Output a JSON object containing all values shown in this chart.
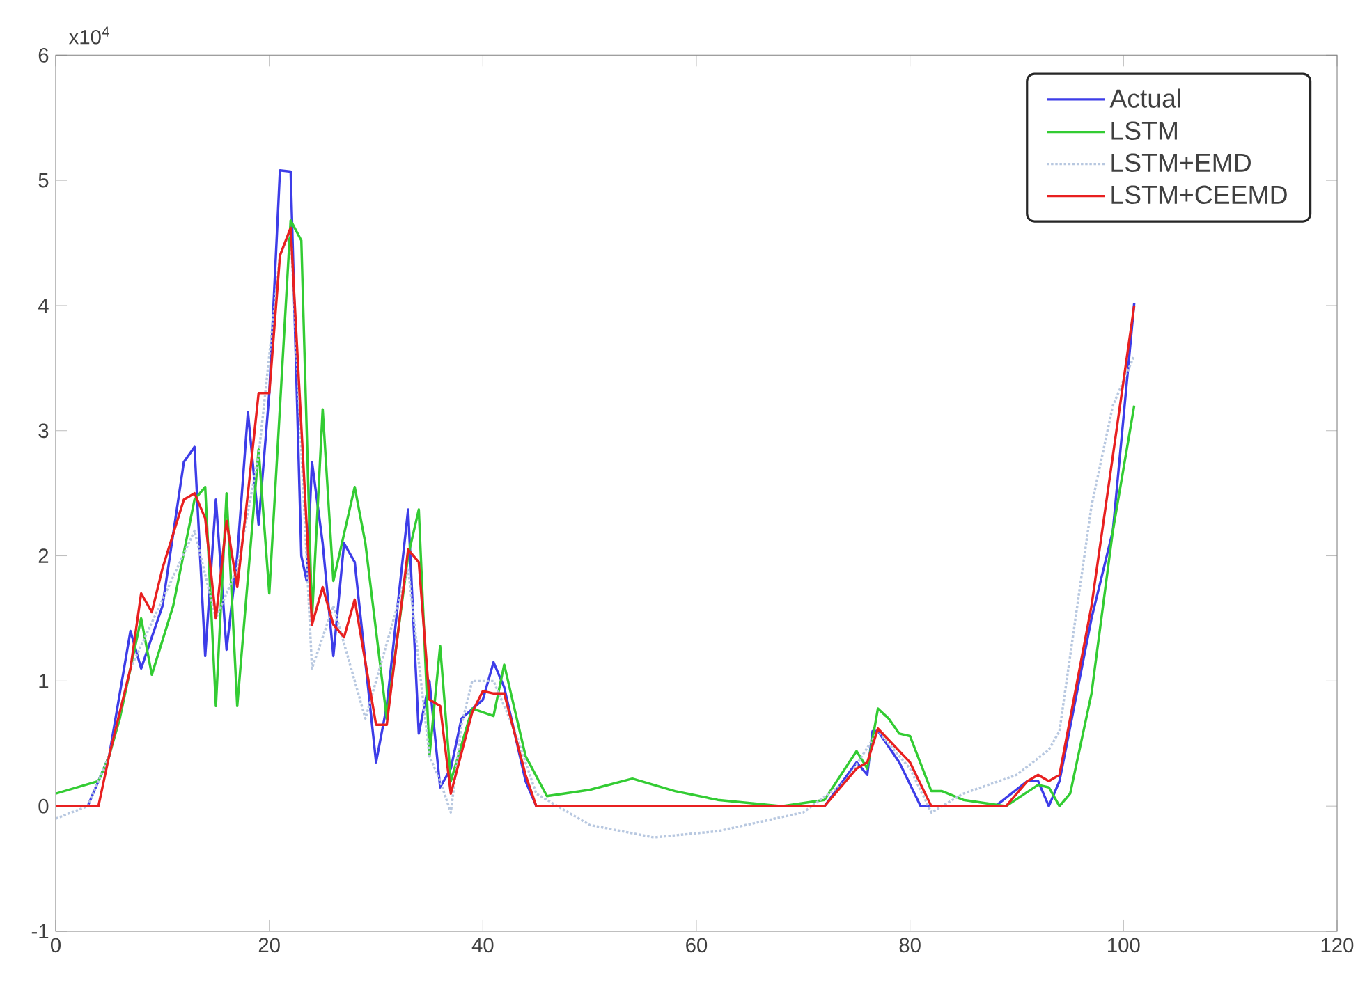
{
  "chart_data": {
    "type": "line",
    "annotations": [
      "x10$^{4}$"
    ],
    "xlim": [
      0,
      120
    ],
    "xticks": [
      0,
      20,
      40,
      60,
      80,
      100,
      120
    ],
    "ylim": [
      -1,
      6
    ],
    "yticks": [
      -1,
      0,
      1,
      2,
      3,
      4,
      5,
      6
    ],
    "legend": "top right",
    "series": [
      {
        "name": "Actual",
        "color": "#3d3de8",
        "line_style": "solid",
        "x": [
          0,
          3,
          5,
          7,
          8,
          10,
          12,
          13,
          14,
          15,
          16,
          17,
          18,
          19,
          20,
          21,
          22,
          23,
          23.5,
          24,
          25,
          26,
          27,
          28,
          30,
          31,
          33,
          34,
          35,
          36,
          37,
          38,
          40,
          41,
          42,
          44,
          45,
          72,
          75,
          76,
          76.5,
          77,
          79,
          81,
          88,
          91,
          92,
          93,
          94,
          97,
          99,
          101
        ],
        "values": [
          0,
          0,
          0.4,
          1.4,
          1.1,
          1.6,
          2.75,
          2.87,
          1.2,
          2.45,
          1.25,
          2.0,
          3.15,
          2.25,
          3.3,
          5.08,
          5.07,
          2.0,
          1.8,
          2.75,
          2.1,
          1.2,
          2.1,
          1.95,
          0.35,
          0.8,
          2.37,
          0.58,
          1.0,
          0.15,
          0.3,
          0.7,
          0.85,
          1.15,
          0.95,
          0.2,
          0,
          0,
          0.35,
          0.25,
          0.6,
          0.6,
          0.35,
          0,
          0,
          0.2,
          0.2,
          0,
          0.2,
          1.5,
          2.2,
          4.02
        ]
      },
      {
        "name": "LSTM",
        "color": "#33cc33",
        "line_style": "solid",
        "x": [
          0,
          4,
          5,
          6,
          8,
          9,
          11,
          13,
          14,
          15,
          16,
          17,
          19,
          20,
          22,
          23,
          24,
          25,
          26,
          28,
          29,
          31,
          33,
          34,
          35,
          36,
          37,
          39,
          41,
          42,
          44,
          46,
          50,
          54,
          58,
          62,
          68,
          72,
          75,
          76,
          77,
          78,
          79,
          80,
          82,
          83,
          85,
          89,
          92,
          93,
          94,
          95,
          97,
          99,
          101
        ],
        "values": [
          0.1,
          0.2,
          0.4,
          0.7,
          1.5,
          1.05,
          1.6,
          2.45,
          2.55,
          0.8,
          2.5,
          0.8,
          2.85,
          1.7,
          4.68,
          4.52,
          1.5,
          3.17,
          1.8,
          2.55,
          2.1,
          0.7,
          2.0,
          2.37,
          0.4,
          1.28,
          0.2,
          0.78,
          0.72,
          1.13,
          0.4,
          0.08,
          0.13,
          0.22,
          0.12,
          0.05,
          0,
          0.05,
          0.44,
          0.3,
          0.78,
          0.7,
          0.58,
          0.56,
          0.12,
          0.12,
          0.05,
          0,
          0.17,
          0.15,
          0,
          0.1,
          0.9,
          2.2,
          3.2
        ]
      },
      {
        "name": "LSTM+EMD",
        "color": "#b8c8e0",
        "line_style": "dotted",
        "x": [
          0,
          3,
          5,
          7,
          13,
          15,
          17,
          19,
          21,
          22,
          24,
          26,
          29,
          33,
          35,
          36,
          37,
          38,
          39,
          41,
          43,
          45,
          50,
          56,
          62,
          70,
          74,
          77,
          80,
          82,
          85,
          90,
          93,
          94,
          97,
          99,
          101
        ],
        "values": [
          -0.1,
          0,
          0.4,
          1.1,
          2.2,
          1.5,
          1.9,
          2.8,
          4.4,
          4.6,
          1.1,
          1.6,
          0.7,
          1.9,
          0.4,
          0.2,
          -0.05,
          0.65,
          1.0,
          1.0,
          0.6,
          0.1,
          -0.15,
          -0.25,
          -0.2,
          -0.05,
          0.2,
          0.6,
          0.3,
          -0.05,
          0.1,
          0.25,
          0.45,
          0.6,
          2.4,
          3.2,
          3.6
        ]
      },
      {
        "name": "LSTM+CEEMD",
        "color": "#e82020",
        "line_style": "solid",
        "x": [
          0,
          4,
          5,
          7,
          8,
          9,
          10,
          12,
          13,
          14,
          15,
          16,
          17,
          18,
          19,
          20,
          21,
          22,
          24,
          25,
          26,
          27,
          28,
          30,
          31,
          33,
          34,
          35,
          36,
          37,
          39,
          40,
          41,
          42,
          44,
          45,
          72,
          75,
          76,
          77,
          80,
          82,
          89,
          91,
          92,
          93,
          94,
          97,
          99,
          101
        ],
        "values": [
          0,
          0,
          0.4,
          1.1,
          1.7,
          1.55,
          1.9,
          2.45,
          2.5,
          2.3,
          1.5,
          2.28,
          1.75,
          2.5,
          3.3,
          3.3,
          4.4,
          4.62,
          1.45,
          1.75,
          1.45,
          1.35,
          1.65,
          0.65,
          0.65,
          2.05,
          1.95,
          0.85,
          0.8,
          0.1,
          0.75,
          0.92,
          0.9,
          0.9,
          0.25,
          0,
          0,
          0.3,
          0.35,
          0.62,
          0.35,
          0,
          0,
          0.2,
          0.25,
          0.2,
          0.25,
          1.6,
          2.8,
          4.0
        ]
      }
    ]
  }
}
